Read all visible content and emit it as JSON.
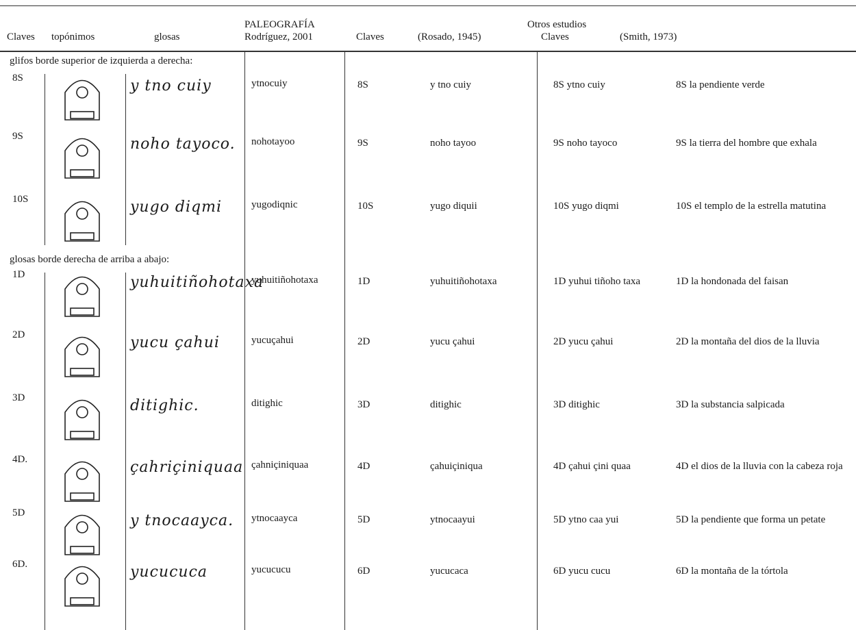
{
  "header": {
    "group": "Otros estudios",
    "columns": [
      "Claves",
      "topónimos",
      "glosas",
      "PALEOGRAFÍA",
      "Rodríguez, 2001",
      "Claves",
      "(Rosado, 1945)",
      "Claves",
      "(Smith, 1973)"
    ]
  },
  "sections": [
    {
      "label": "glifos borde superior de izquierda a derecha:",
      "rows": [
        {
          "clave": "8S",
          "glosa": "y tno cuiy",
          "paleografia": "ytnocuiy",
          "rosado_clave": "8S",
          "rosado": "y tno cuiy",
          "smith": "8S  ytno cuiy",
          "smith_traduccion": "8S  la pendiente verde"
        },
        {
          "clave": "9S",
          "glosa": "noho tayoco.",
          "paleografia": "nohotayoo",
          "rosado_clave": "9S",
          "rosado": "noho tayoo",
          "smith": "9S  noho tayoco",
          "smith_traduccion": "9S  la tierra del hombre que exhala"
        },
        {
          "clave": "10S",
          "glosa": "yugo diqmi",
          "paleografia": "yugodiqnic",
          "rosado_clave": "10S",
          "rosado": "yugo diquii",
          "smith": "10S yugo diqmi",
          "smith_traduccion": "10S  el templo de la estrella matutina"
        }
      ]
    },
    {
      "label": "glosas borde derecha de arriba a abajo:",
      "rows": [
        {
          "clave": "1D",
          "glosa": "yuhuitiñohotaxa",
          "paleografia": "yuhuitiñohotaxa",
          "rosado_clave": "1D",
          "rosado": "yuhuitiñohotaxa",
          "smith": "1D  yuhui tiñoho taxa",
          "smith_traduccion": "1D  la hondonada del faisan"
        },
        {
          "clave": "2D",
          "glosa": "yucu çahui",
          "paleografia": "yucuçahui",
          "rosado_clave": "2D",
          "rosado": "yucu çahui",
          "smith": "2D  yucu çahui",
          "smith_traduccion": "2D  la montaña del dios de la lluvia"
        },
        {
          "clave": "3D",
          "glosa": "ditighic.",
          "paleografia": "ditighic",
          "rosado_clave": "3D",
          "rosado": "ditighic",
          "smith": "3D  ditighic",
          "smith_traduccion": "3D  la substancia salpicada"
        },
        {
          "clave": "4D.",
          "glosa": "çahriçiniquaa",
          "paleografia": "çahniçiniquaa",
          "rosado_clave": "4D",
          "rosado": "çahuiçiniqua",
          "smith": "4D  çahui çini quaa",
          "smith_traduccion": "4D  el dios de la lluvia con la cabeza roja"
        },
        {
          "clave": "5D",
          "glosa": "y tnocaayca.",
          "paleografia": "ytnocaayca",
          "rosado_clave": "5D",
          "rosado": "ytnocaayui",
          "smith": "5D  ytno caa yui",
          "smith_traduccion": "5D  la pendiente que forma un petate"
        },
        {
          "clave": "6D.",
          "glosa": "yucucuca",
          "paleografia": "yucucucu",
          "rosado_clave": "6D",
          "rosado": "yucucaca",
          "smith": "6D  yucu cucu",
          "smith_traduccion": "6D  la montaña de la tórtola"
        }
      ]
    }
  ]
}
